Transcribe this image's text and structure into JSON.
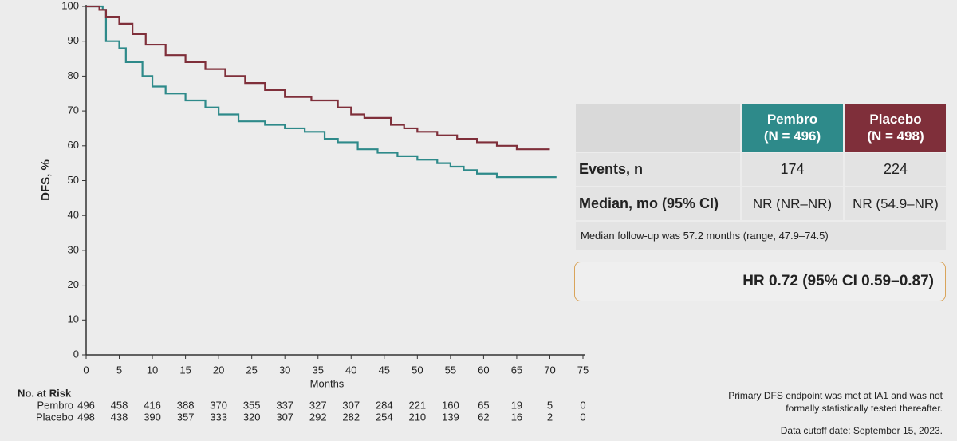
{
  "chart_data": {
    "type": "line",
    "xlabel": "Months",
    "ylabel": "DFS, %",
    "xlim": [
      0,
      75
    ],
    "ylim": [
      0,
      100
    ],
    "xticks": [
      0,
      5,
      10,
      15,
      20,
      25,
      30,
      35,
      40,
      45,
      50,
      55,
      60,
      65,
      70,
      75
    ],
    "yticks": [
      0,
      10,
      20,
      30,
      40,
      50,
      60,
      70,
      80,
      90,
      100
    ],
    "series": [
      {
        "name": "Pembro",
        "color": "#2e8a8a",
        "x": [
          0,
          2.5,
          2.5,
          3,
          3,
          5,
          5,
          6,
          6,
          8.5,
          8.5,
          10,
          10,
          12,
          12,
          15,
          15,
          18,
          18,
          20,
          20,
          23,
          23,
          27,
          27,
          30,
          30,
          33,
          33,
          36,
          36,
          38,
          38,
          41,
          41,
          44,
          44,
          47,
          47,
          50,
          50,
          53,
          53,
          55,
          55,
          57,
          57,
          59,
          59,
          62,
          62,
          71
        ],
        "values": [
          100,
          100,
          99,
          99,
          90,
          90,
          88,
          88,
          84,
          84,
          80,
          80,
          77,
          77,
          75,
          75,
          73,
          73,
          71,
          71,
          69,
          69,
          67,
          67,
          66,
          66,
          65,
          65,
          64,
          64,
          62,
          62,
          61,
          61,
          59,
          59,
          58,
          58,
          57,
          57,
          56,
          56,
          55,
          55,
          54,
          54,
          53,
          53,
          52,
          52,
          51,
          51
        ]
      },
      {
        "name": "Placebo",
        "color": "#7f2f3a",
        "x": [
          0,
          2,
          2,
          3,
          3,
          5,
          5,
          7,
          7,
          9,
          9,
          12,
          12,
          15,
          15,
          18,
          18,
          21,
          21,
          24,
          24,
          27,
          27,
          30,
          30,
          34,
          34,
          38,
          38,
          40,
          40,
          42,
          42,
          46,
          46,
          48,
          48,
          50,
          50,
          53,
          53,
          56,
          56,
          59,
          59,
          62,
          62,
          65,
          65,
          70
        ],
        "values": [
          100,
          100,
          99,
          99,
          97,
          97,
          95,
          95,
          92,
          92,
          89,
          89,
          86,
          86,
          84,
          84,
          82,
          82,
          80,
          80,
          78,
          78,
          76,
          76,
          74,
          74,
          73,
          73,
          71,
          71,
          69,
          69,
          68,
          68,
          66,
          66,
          65,
          65,
          64,
          64,
          63,
          63,
          62,
          62,
          61,
          61,
          60,
          60,
          59,
          59
        ]
      }
    ],
    "risk_table": {
      "title": "No. at Risk",
      "rows": [
        {
          "name": "Pembro",
          "values": [
            496,
            458,
            416,
            388,
            370,
            355,
            337,
            327,
            307,
            284,
            221,
            160,
            65,
            19,
            5,
            0
          ]
        },
        {
          "name": "Placebo",
          "values": [
            498,
            438,
            390,
            357,
            333,
            320,
            307,
            292,
            282,
            254,
            210,
            139,
            62,
            16,
            2,
            0
          ]
        }
      ]
    }
  },
  "table": {
    "headers": [
      [
        "Pembro",
        "(N = 496)"
      ],
      [
        "Placebo",
        "(N = 498)"
      ]
    ],
    "rows": [
      [
        "Events, n",
        "174",
        "224"
      ],
      [
        "Median, mo (95% CI)",
        "NR (NR–NR)",
        "NR (54.9–NR)"
      ]
    ],
    "note": "Median follow-up was 57.2 months (range, 47.9–74.5)"
  },
  "hr_box": "HR 0.72 (95% CI 0.59–0.87)",
  "footnotes": [
    "Primary DFS endpoint was met at IA1 and was not",
    "formally statistically tested thereafter.",
    "Data cutoff date: September 15, 2023."
  ]
}
